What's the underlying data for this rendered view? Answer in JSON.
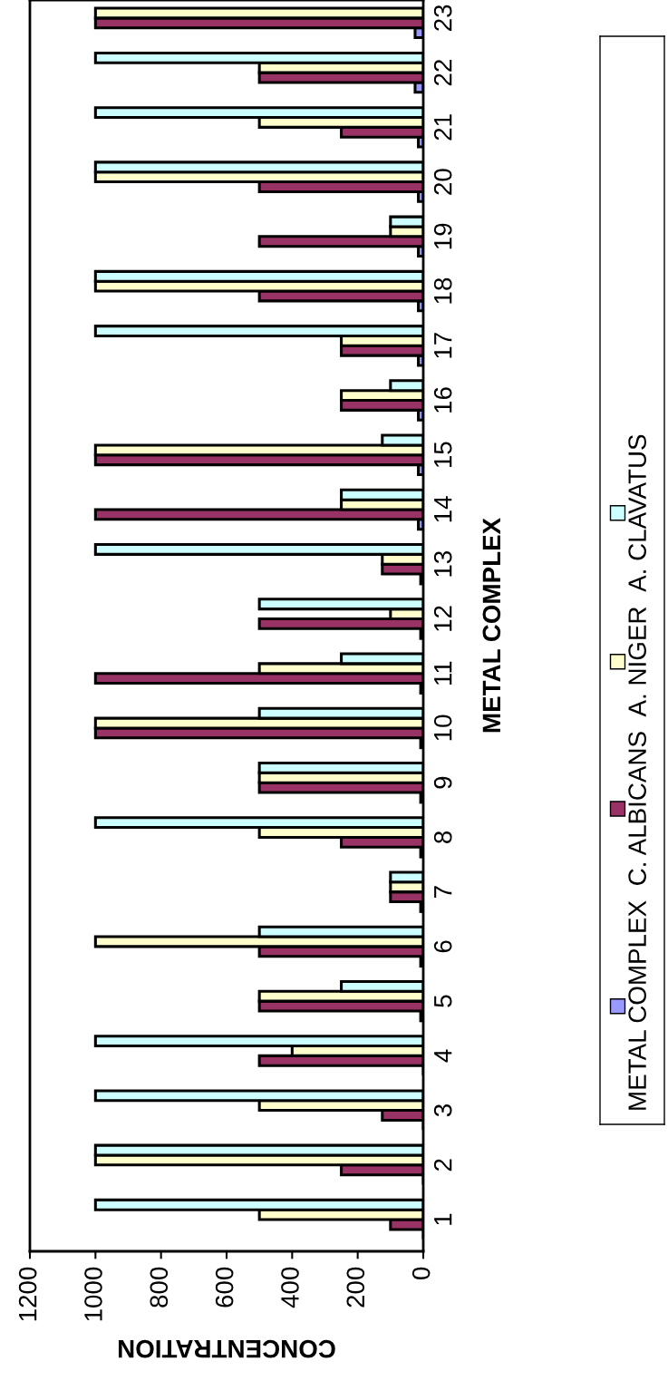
{
  "chart_data": {
    "type": "bar",
    "orientation": "horizontal",
    "xlabel": "CONCENTRATION",
    "ylabel": "METAL COMPLEX",
    "categories": [
      "23",
      "22",
      "21",
      "20",
      "19",
      "18",
      "17",
      "16",
      "15",
      "14",
      "13",
      "12",
      "11",
      "10",
      "9",
      "8",
      "7",
      "6",
      "5",
      "4",
      "3",
      "2",
      "1"
    ],
    "series": [
      {
        "name": "METAL COMPLEX",
        "color": "#9999ff",
        "values": [
          25,
          25,
          15,
          15,
          15,
          15,
          15,
          15,
          15,
          15,
          8,
          8,
          8,
          8,
          8,
          8,
          8,
          8,
          8,
          0,
          0,
          0,
          0
        ]
      },
      {
        "name": "C. ALBICANS",
        "color": "#993366",
        "values": [
          1000,
          500,
          250,
          500,
          500,
          500,
          250,
          250,
          1000,
          1000,
          125,
          500,
          1000,
          1000,
          500,
          250,
          100,
          500,
          500,
          500,
          125,
          250,
          100
        ]
      },
      {
        "name": "A. NIGER",
        "color": "#ffffcc",
        "values": [
          1000,
          500,
          500,
          1000,
          100,
          1000,
          250,
          250,
          1000,
          250,
          125,
          100,
          500,
          1000,
          500,
          500,
          100,
          1000,
          500,
          400,
          500,
          1000,
          500
        ]
      },
      {
        "name": "A. CLAVATUS",
        "color": "#ccffff",
        "values": [
          null,
          1000,
          1000,
          1000,
          100,
          1000,
          1000,
          100,
          125,
          250,
          1000,
          500,
          250,
          500,
          500,
          1000,
          100,
          500,
          250,
          1000,
          1000,
          1000,
          1000
        ]
      }
    ],
    "xlim": [
      1200,
      0
    ],
    "xticks": [
      0,
      200,
      400,
      600,
      800,
      1000,
      1200
    ],
    "grid": false,
    "legend": "right"
  }
}
